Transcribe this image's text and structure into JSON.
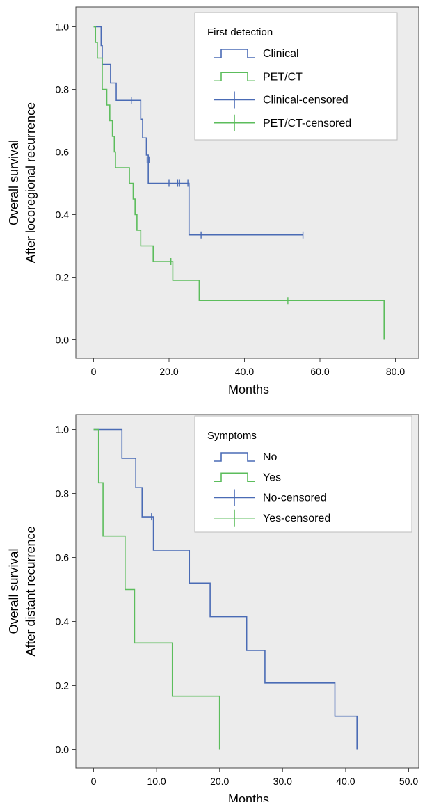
{
  "chart_data": [
    {
      "type": "line",
      "subtype": "kaplan-meier",
      "xlabel": "Months",
      "ylabel_lines": [
        "Overall survival",
        "After locoregional recurrence"
      ],
      "xlim": [
        0,
        80
      ],
      "ylim": [
        0,
        1
      ],
      "xticks": [
        "0",
        "20.0",
        "40.0",
        "60.0",
        "80.0"
      ],
      "yticks": [
        "0.0",
        "0.2",
        "0.4",
        "0.6",
        "0.8",
        "1.0"
      ],
      "xtick_values": [
        0,
        20,
        40,
        60,
        80
      ],
      "ytick_values": [
        0,
        0.2,
        0.4,
        0.6,
        0.8,
        1.0
      ],
      "grid": false,
      "background": "#ececec",
      "legend": {
        "title": "First detection",
        "placement": "top-right",
        "entries": [
          {
            "label": "Clinical",
            "kind": "step",
            "color": "#4a6bb5"
          },
          {
            "label": "PET/CT",
            "kind": "step",
            "color": "#5cbd5c"
          },
          {
            "label": "Clinical-censored",
            "kind": "censor",
            "color": "#4a6bb5"
          },
          {
            "label": "PET/CT-censored",
            "kind": "censor",
            "color": "#5cbd5c"
          }
        ]
      },
      "series": [
        {
          "name": "Clinical",
          "color": "#4a6bb5",
          "steps": [
            [
              0,
              1.0
            ],
            [
              2,
              0.94
            ],
            [
              2.3,
              0.88
            ],
            [
              4.5,
              0.82
            ],
            [
              6,
              0.765
            ],
            [
              12.5,
              0.705
            ],
            [
              13,
              0.645
            ],
            [
              14,
              0.59
            ],
            [
              14.5,
              0.5
            ],
            [
              25,
              0.5
            ],
            [
              25.3,
              0.335
            ],
            [
              55.5,
              0.335
            ]
          ],
          "censored": [
            [
              10,
              0.765
            ],
            [
              14.2,
              0.575
            ],
            [
              14.8,
              0.575
            ],
            [
              20,
              0.5
            ],
            [
              22.3,
              0.5
            ],
            [
              22.8,
              0.5
            ],
            [
              25,
              0.5
            ],
            [
              28.5,
              0.335
            ],
            [
              55.5,
              0.335
            ]
          ]
        },
        {
          "name": "PET/CT",
          "color": "#5cbd5c",
          "steps": [
            [
              0,
              1.0
            ],
            [
              0.5,
              0.95
            ],
            [
              1,
              0.9
            ],
            [
              2.3,
              0.8
            ],
            [
              3.5,
              0.75
            ],
            [
              4.3,
              0.7
            ],
            [
              5,
              0.65
            ],
            [
              5.5,
              0.6
            ],
            [
              5.8,
              0.55
            ],
            [
              9.5,
              0.5
            ],
            [
              10.5,
              0.45
            ],
            [
              11,
              0.4
            ],
            [
              11.5,
              0.35
            ],
            [
              12.5,
              0.3
            ],
            [
              15.8,
              0.25
            ],
            [
              21,
              0.19
            ],
            [
              28,
              0.125
            ],
            [
              77,
              0.125
            ],
            [
              77,
              0.0
            ]
          ],
          "censored": [
            [
              20.5,
              0.25
            ],
            [
              51.5,
              0.125
            ]
          ]
        }
      ]
    },
    {
      "type": "line",
      "subtype": "kaplan-meier",
      "xlabel": "Months",
      "ylabel_lines": [
        "Overall survival",
        "After distant recurrence"
      ],
      "xlim": [
        0,
        50
      ],
      "ylim": [
        0,
        1
      ],
      "xticks": [
        "0",
        "10.0",
        "20.0",
        "30.0",
        "40.0",
        "50.0"
      ],
      "yticks": [
        "0.0",
        "0.2",
        "0.4",
        "0.6",
        "0.8",
        "1.0"
      ],
      "xtick_values": [
        0,
        10,
        20,
        30,
        40,
        50
      ],
      "ytick_values": [
        0,
        0.2,
        0.4,
        0.6,
        0.8,
        1.0
      ],
      "grid": false,
      "background": "#ececec",
      "legend": {
        "title": "Symptoms",
        "placement": "top-right",
        "entries": [
          {
            "label": "No",
            "kind": "step",
            "color": "#4a6bb5"
          },
          {
            "label": "Yes",
            "kind": "step",
            "color": "#5cbd5c"
          },
          {
            "label": "No-censored",
            "kind": "censor",
            "color": "#4a6bb5"
          },
          {
            "label": "Yes-censored",
            "kind": "censor",
            "color": "#5cbd5c"
          }
        ]
      },
      "series": [
        {
          "name": "No",
          "color": "#4a6bb5",
          "steps": [
            [
              0,
              1.0
            ],
            [
              4.5,
              0.91
            ],
            [
              6.7,
              0.818
            ],
            [
              7.7,
              0.727
            ],
            [
              9.5,
              0.623
            ],
            [
              15.2,
              0.52
            ],
            [
              18.5,
              0.415
            ],
            [
              24.3,
              0.31
            ],
            [
              27.2,
              0.208
            ],
            [
              38.3,
              0.104
            ],
            [
              41.8,
              0.0
            ]
          ],
          "censored": [
            [
              9.2,
              0.727
            ]
          ]
        },
        {
          "name": "Yes",
          "color": "#5cbd5c",
          "steps": [
            [
              0,
              1.0
            ],
            [
              0.8,
              0.833
            ],
            [
              1.5,
              0.667
            ],
            [
              5,
              0.5
            ],
            [
              6.5,
              0.333
            ],
            [
              12.5,
              0.167
            ],
            [
              20,
              0.0
            ]
          ],
          "censored": []
        }
      ]
    }
  ]
}
